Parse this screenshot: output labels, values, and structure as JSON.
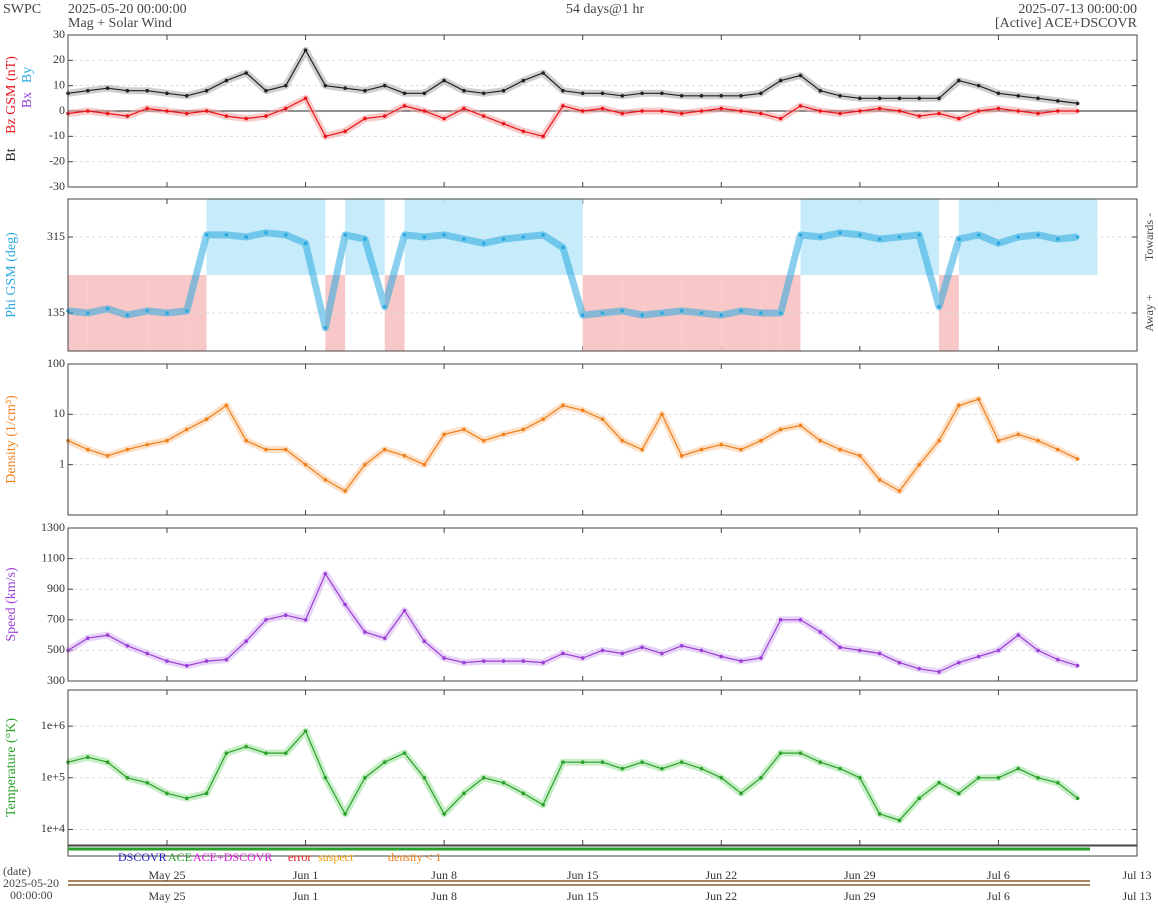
{
  "chart_data": {
    "type": "line",
    "title": "Mag + Solar Wind",
    "source": "SWPC",
    "start": "2025-05-20 00:00:00",
    "end": "2025-07-13 00:00:00",
    "span": "54 days@1 hr",
    "status": "[Active] ACE+DSCOVR",
    "xlim": [
      "2025-05-20 00:00:00",
      "2025-07-13 00:00:00"
    ],
    "xticks": [
      {
        "value": "2025-05-25",
        "label": "May 25"
      },
      {
        "value": "2025-06-01",
        "label": "Jun 1"
      },
      {
        "value": "2025-06-08",
        "label": "Jun 8"
      },
      {
        "value": "2025-06-15",
        "label": "Jun 15"
      },
      {
        "value": "2025-06-22",
        "label": "Jun 22"
      },
      {
        "value": "2025-06-29",
        "label": "Jun 29"
      },
      {
        "value": "2025-07-06",
        "label": "Jul 6"
      },
      {
        "value": "2025-07-13",
        "label": "Jul 13"
      }
    ],
    "x": [
      "2025-05-20",
      "2025-05-21",
      "2025-05-22",
      "2025-05-23",
      "2025-05-24",
      "2025-05-25",
      "2025-05-26",
      "2025-05-27",
      "2025-05-28",
      "2025-05-29",
      "2025-05-30",
      "2025-05-31",
      "2025-06-01",
      "2025-06-02",
      "2025-06-03",
      "2025-06-04",
      "2025-06-05",
      "2025-06-06",
      "2025-06-07",
      "2025-06-08",
      "2025-06-09",
      "2025-06-10",
      "2025-06-11",
      "2025-06-12",
      "2025-06-13",
      "2025-06-14",
      "2025-06-15",
      "2025-06-16",
      "2025-06-17",
      "2025-06-18",
      "2025-06-19",
      "2025-06-20",
      "2025-06-21",
      "2025-06-22",
      "2025-06-23",
      "2025-06-24",
      "2025-06-25",
      "2025-06-26",
      "2025-06-27",
      "2025-06-28",
      "2025-06-29",
      "2025-06-30",
      "2025-07-01",
      "2025-07-02",
      "2025-07-03",
      "2025-07-04",
      "2025-07-05",
      "2025-07-06",
      "2025-07-07",
      "2025-07-08",
      "2025-07-09",
      "2025-07-10"
    ],
    "grid": true,
    "panels": [
      {
        "labels": [
          {
            "text": "Bt",
            "color": "#222222"
          },
          {
            "text": "Bz GSM (nT)",
            "color": "#e8151b"
          },
          {
            "text": "Bx",
            "color": "#8a3fd6"
          },
          {
            "text": "By",
            "color": "#29a9e0"
          }
        ],
        "ylim": [
          -30,
          30
        ],
        "yticks": [
          -30,
          -20,
          -10,
          0,
          10,
          20,
          30
        ],
        "series": [
          {
            "name": "Bt",
            "color": "#222222",
            "shade": "#aaaaaa",
            "values": [
              7,
              8,
              9,
              8,
              8,
              7,
              6,
              8,
              12,
              15,
              8,
              10,
              24,
              10,
              9,
              8,
              10,
              7,
              7,
              12,
              8,
              7,
              8,
              12,
              15,
              8,
              7,
              7,
              6,
              7,
              7,
              6,
              6,
              6,
              6,
              7,
              12,
              14,
              8,
              6,
              5,
              5,
              5,
              5,
              5,
              12,
              10,
              7,
              6,
              5,
              4,
              3
            ]
          },
          {
            "name": "Bz",
            "color": "#e8151b",
            "shade": "#f6a0a0",
            "values": [
              -1,
              0,
              -1,
              -2,
              1,
              0,
              -1,
              0,
              -2,
              -3,
              -2,
              1,
              5,
              -10,
              -8,
              -3,
              -2,
              2,
              0,
              -3,
              1,
              -2,
              -5,
              -8,
              -10,
              2,
              0,
              1,
              -1,
              0,
              0,
              -1,
              0,
              1,
              0,
              -1,
              -3,
              2,
              0,
              -1,
              0,
              1,
              0,
              -2,
              -1,
              -3,
              0,
              1,
              0,
              -1,
              0,
              0
            ]
          }
        ]
      },
      {
        "labels": [
          {
            "text": "Phi GSM (deg)",
            "color": "#29a9e0"
          }
        ],
        "right_labels": [
          "Towards -",
          "Away +"
        ],
        "sector_colors": [
          "#c6ecfb",
          "#f8c8c8"
        ],
        "ylim": [
          45,
          405
        ],
        "yticks": [
          135,
          315
        ],
        "series": [
          {
            "name": "Phi",
            "color": "#29a9e0",
            "shade": "#29a9e0",
            "values": [
              140,
              135,
              145,
              130,
              140,
              135,
              140,
              320,
              320,
              315,
              325,
              320,
              300,
              100,
              320,
              310,
              150,
              320,
              315,
              320,
              310,
              300,
              310,
              315,
              320,
              290,
              130,
              135,
              140,
              130,
              135,
              140,
              135,
              130,
              140,
              135,
              135,
              320,
              315,
              325,
              320,
              310,
              315,
              320,
              150,
              310,
              320,
              300,
              315,
              320,
              310,
              315
            ]
          }
        ]
      },
      {
        "labels": [
          {
            "text": "Density (1/cm³)",
            "color": "#f07f1a"
          }
        ],
        "log": true,
        "ylim": [
          0.1,
          100
        ],
        "yticks": [
          1,
          10,
          100
        ],
        "series": [
          {
            "name": "Density",
            "color": "#f07f1a",
            "shade": "#fbc79a",
            "values": [
              3,
              2,
              1.5,
              2,
              2.5,
              3,
              5,
              8,
              15,
              3,
              2,
              2,
              1,
              0.5,
              0.3,
              1,
              2,
              1.5,
              1,
              4,
              5,
              3,
              4,
              5,
              8,
              15,
              12,
              8,
              3,
              2,
              10,
              1.5,
              2,
              2.5,
              2,
              3,
              5,
              6,
              3,
              2,
              1.5,
              0.5,
              0.3,
              1,
              3,
              15,
              20,
              3,
              4,
              3,
              2,
              1.3
            ]
          }
        ]
      },
      {
        "labels": [
          {
            "text": "Speed (km/s)",
            "color": "#9b3fd6"
          }
        ],
        "ylim": [
          300,
          1300
        ],
        "yticks": [
          300,
          500,
          700,
          900,
          1100,
          1300
        ],
        "series": [
          {
            "name": "Speed",
            "color": "#9b3fd6",
            "shade": "#d6b2f0",
            "values": [
              500,
              580,
              600,
              530,
              480,
              430,
              400,
              430,
              440,
              560,
              700,
              730,
              700,
              1000,
              800,
              620,
              580,
              760,
              560,
              450,
              420,
              430,
              430,
              430,
              420,
              480,
              450,
              500,
              480,
              520,
              480,
              530,
              500,
              460,
              430,
              450,
              700,
              700,
              620,
              520,
              500,
              480,
              420,
              380,
              360,
              420,
              460,
              500,
              600,
              500,
              440,
              400
            ]
          }
        ]
      },
      {
        "labels": [
          {
            "text": "Temperature (°K)",
            "color": "#2aa12a"
          }
        ],
        "log": true,
        "ylim": [
          5000,
          5000000
        ],
        "yticks": [
          {
            "value": 10000,
            "label": "1e+4"
          },
          {
            "value": 100000,
            "label": "1e+5"
          },
          {
            "value": 1000000,
            "label": "1e+6"
          }
        ],
        "series": [
          {
            "name": "Temperature",
            "color": "#2aa12a",
            "shade": "#9be09b",
            "values": [
              200000,
              250000,
              200000,
              100000,
              80000,
              50000,
              40000,
              50000,
              300000,
              400000,
              300000,
              300000,
              800000,
              100000,
              20000,
              100000,
              200000,
              300000,
              100000,
              20000,
              50000,
              100000,
              80000,
              50000,
              30000,
              200000,
              200000,
              200000,
              150000,
              200000,
              150000,
              200000,
              150000,
              100000,
              50000,
              100000,
              300000,
              300000,
              200000,
              150000,
              100000,
              20000,
              15000,
              40000,
              80000,
              50000,
              100000,
              100000,
              150000,
              100000,
              80000,
              40000
            ]
          }
        ]
      }
    ],
    "status_legend": [
      {
        "text": "DSCOVR",
        "color": "#2020c0"
      },
      {
        "text": "ACE",
        "color": "#2aa12a"
      },
      {
        "text": "ACE+DSCOVR",
        "color": "#e020e0"
      },
      {
        "text": "error",
        "color": "#e8151b"
      },
      {
        "text": "suspect",
        "color": "#f0a000"
      },
      {
        "text": "density < 1",
        "color": "#f07f1a"
      }
    ],
    "date_axis": {
      "label": "(date)",
      "start_date": "2025-05-20",
      "start_time": "00:00:00"
    }
  }
}
